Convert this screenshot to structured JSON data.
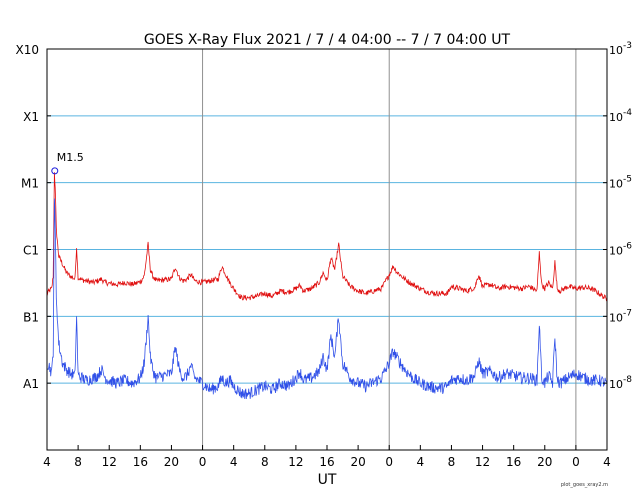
{
  "chart_data": {
    "type": "line",
    "title": "GOES X-Ray Flux   2021 /  7 /  4   04:00 --  7 /  7   04:00   UT",
    "xlabel": "UT",
    "credit": "plot_goes_xray2.m",
    "x_range_hours": [
      0,
      72
    ],
    "x_tick_labels": [
      "4",
      "8",
      "12",
      "16",
      "20",
      "0",
      "4",
      "8",
      "12",
      "16",
      "20",
      "0",
      "4",
      "8",
      "12",
      "16",
      "20",
      "0",
      "4"
    ],
    "day_boundaries_hours": [
      20,
      44,
      68
    ],
    "y_scale": "log",
    "ylim": [
      1e-09,
      0.001
    ],
    "y_left_labels": [
      {
        "label": "X10",
        "value": 0.001
      },
      {
        "label": "X1",
        "value": 0.0001
      },
      {
        "label": "M1",
        "value": 1e-05
      },
      {
        "label": "C1",
        "value": 1e-06
      },
      {
        "label": "B1",
        "value": 1e-07
      },
      {
        "label": "A1",
        "value": 1e-08
      }
    ],
    "y_right_labels": [
      {
        "base": "10",
        "exp": "-3",
        "value": 0.001
      },
      {
        "base": "10",
        "exp": "-4",
        "value": 0.0001
      },
      {
        "base": "10",
        "exp": "-5",
        "value": 1e-05
      },
      {
        "base": "10",
        "exp": "-6",
        "value": 1e-06
      },
      {
        "base": "10",
        "exp": "-7",
        "value": 1e-07
      },
      {
        "base": "10",
        "exp": "-8",
        "value": 1e-08
      }
    ],
    "gridlines": [
      0.0001,
      1e-05,
      1e-06,
      1e-07,
      1e-08
    ],
    "annotation": {
      "label": "M1.5",
      "x": 1.0,
      "y": 1.5e-05
    },
    "colors": {
      "long": "#e01010",
      "short": "#3050e8",
      "grid": "#5ab4e0",
      "day": "#909090"
    },
    "series": [
      {
        "x": [
          0,
          0.3,
          0.6,
          0.8,
          0.95,
          1.05,
          1.2,
          1.5,
          2,
          2.5,
          3,
          3.6,
          3.8,
          4,
          4.5,
          5,
          6,
          6.5,
          7,
          7.5,
          8,
          9,
          10,
          11,
          12,
          12.5,
          13,
          13.3,
          13.6,
          14,
          15,
          16,
          16.5,
          17,
          17.5,
          18,
          18.5,
          19,
          20,
          21,
          22,
          22.5,
          23,
          23.5,
          24,
          24.5,
          25,
          26,
          27,
          28,
          29,
          30,
          31,
          32,
          32.5,
          33,
          34,
          35,
          35.5,
          36,
          36.5,
          37,
          37.5,
          38,
          39,
          40,
          41,
          43,
          44,
          44.5,
          45,
          46,
          47,
          48,
          49,
          50,
          51,
          51.5,
          52,
          53,
          54,
          55,
          55.5,
          56,
          57,
          58,
          59,
          60,
          61,
          62,
          63,
          63.3,
          63.6,
          64,
          64.5,
          65,
          65.3,
          65.6,
          66,
          67,
          68,
          69,
          70,
          71,
          72
        ],
        "y": [
          2.2e-07,
          2.4e-07,
          2.6e-07,
          4e-07,
          1.5e-05,
          8e-06,
          2e-06,
          8e-07,
          6e-07,
          4.5e-07,
          4e-07,
          3.6e-07,
          1.1e-06,
          3.8e-07,
          3.5e-07,
          3.4e-07,
          3.2e-07,
          3.4e-07,
          3.6e-07,
          3.2e-07,
          3.1e-07,
          3e-07,
          3.2e-07,
          3e-07,
          3.3e-07,
          4e-07,
          1.2e-06,
          5e-07,
          4e-07,
          3.4e-07,
          3.5e-07,
          3.6e-07,
          5.5e-07,
          3.8e-07,
          3.4e-07,
          3.6e-07,
          4.2e-07,
          3.4e-07,
          3.2e-07,
          3.4e-07,
          3.6e-07,
          5.6e-07,
          4.2e-07,
          3.2e-07,
          2.6e-07,
          2.2e-07,
          1.9e-07,
          1.9e-07,
          2e-07,
          2.2e-07,
          2e-07,
          2.4e-07,
          2.3e-07,
          2.6e-07,
          2.9e-07,
          2.4e-07,
          2.6e-07,
          3.2e-07,
          4.5e-07,
          3.4e-07,
          7.5e-07,
          5e-07,
          1.2e-06,
          4e-07,
          2.8e-07,
          2.4e-07,
          2.2e-07,
          2.6e-07,
          4.2e-07,
          5.6e-07,
          4.6e-07,
          3.6e-07,
          3e-07,
          2.6e-07,
          2.3e-07,
          2.2e-07,
          2.2e-07,
          2.2e-07,
          2.8e-07,
          2.6e-07,
          2.4e-07,
          2.7e-07,
          4.2e-07,
          2.8e-07,
          3e-07,
          2.6e-07,
          2.8e-07,
          2.7e-07,
          2.6e-07,
          2.8e-07,
          2.4e-07,
          9e-07,
          3e-07,
          2.6e-07,
          3.2e-07,
          2.6e-07,
          6.5e-07,
          2.6e-07,
          2.4e-07,
          2.8e-07,
          2.6e-07,
          2.7e-07,
          2.6e-07,
          2.2e-07,
          1.8e-07
        ]
      },
      {
        "x": [
          0,
          0.3,
          0.6,
          0.8,
          0.95,
          1.05,
          1.2,
          1.5,
          2,
          2.5,
          3,
          3.6,
          3.8,
          4,
          4.5,
          5,
          6,
          6.5,
          7,
          7.5,
          8,
          9,
          10,
          11,
          12,
          12.5,
          13,
          13.3,
          13.6,
          14,
          15,
          16,
          16.5,
          17,
          17.5,
          18,
          18.5,
          19,
          20,
          21,
          22,
          22.5,
          23,
          23.5,
          24,
          24.5,
          25,
          26,
          27,
          28,
          29,
          30,
          31,
          32,
          32.5,
          33,
          34,
          35,
          35.5,
          36,
          36.5,
          37,
          37.5,
          38,
          39,
          40,
          41,
          43,
          44,
          44.5,
          45,
          46,
          47,
          48,
          49,
          50,
          51,
          51.5,
          52,
          53,
          54,
          55,
          55.5,
          56,
          57,
          58,
          59,
          60,
          61,
          62,
          63,
          63.3,
          63.6,
          64,
          64.5,
          65,
          65.3,
          65.6,
          66,
          67,
          68,
          69,
          70,
          71,
          72
        ],
        "y": [
          2e-08,
          1.8e-08,
          1.4e-08,
          3e-08,
          6e-06,
          2e-06,
          2e-07,
          4e-08,
          2e-08,
          1.6e-08,
          1.4e-08,
          1.3e-08,
          1e-07,
          1.3e-08,
          1.2e-08,
          1.1e-08,
          1.2e-08,
          1.3e-08,
          1.6e-08,
          1.2e-08,
          1.1e-08,
          1e-08,
          1.1e-08,
          1e-08,
          1.2e-08,
          2e-08,
          1e-07,
          2.4e-08,
          1.6e-08,
          1.2e-08,
          1.3e-08,
          1.4e-08,
          3.5e-08,
          1.6e-08,
          1.2e-08,
          1.3e-08,
          1.8e-08,
          1.2e-08,
          1e-08,
          8e-09,
          9e-09,
          1.2e-08,
          1e-08,
          1.1e-08,
          9e-09,
          8e-09,
          7e-09,
          7e-09,
          8e-09,
          9e-09,
          8e-09,
          1e-08,
          9e-09,
          1.2e-08,
          1.5e-08,
          1.1e-08,
          1.2e-08,
          1.5e-08,
          2.5e-08,
          1.6e-08,
          5e-08,
          2.5e-08,
          1e-07,
          2e-08,
          1.2e-08,
          1e-08,
          9e-09,
          1.2e-08,
          2e-08,
          3e-08,
          2.4e-08,
          1.6e-08,
          1.2e-08,
          1e-08,
          9e-09,
          8.5e-09,
          8.5e-09,
          9e-09,
          1.1e-08,
          1.2e-08,
          1.1e-08,
          1.3e-08,
          2.2e-08,
          1.4e-08,
          1.5e-08,
          1.2e-08,
          1.4e-08,
          1.3e-08,
          1.2e-08,
          1.2e-08,
          1.1e-08,
          8e-08,
          1.2e-08,
          1e-08,
          1.3e-08,
          1e-08,
          5e-08,
          1.1e-08,
          1e-08,
          1.2e-08,
          1.4e-08,
          1.2e-08,
          1.1e-08,
          1.1e-08,
          1e-08
        ]
      }
    ]
  }
}
